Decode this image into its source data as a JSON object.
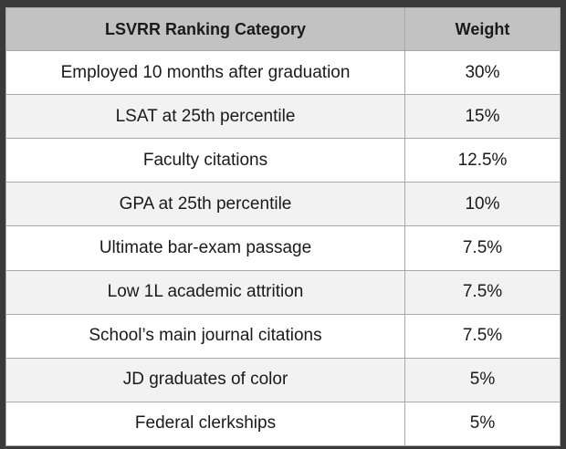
{
  "table": {
    "headers": [
      "LSVRR Ranking Category",
      "Weight"
    ],
    "rows": [
      {
        "category": "Employed 10 months after graduation",
        "weight": "30%"
      },
      {
        "category": "LSAT at 25th percentile",
        "weight": "15%"
      },
      {
        "category": "Faculty citations",
        "weight": "12.5%"
      },
      {
        "category": "GPA at 25th percentile",
        "weight": "10%"
      },
      {
        "category": "Ultimate bar-exam passage",
        "weight": "7.5%"
      },
      {
        "category": "Low 1L academic attrition",
        "weight": "7.5%"
      },
      {
        "category": "School’s main journal citations",
        "weight": "7.5%"
      },
      {
        "category": "JD graduates of color",
        "weight": "5%"
      },
      {
        "category": "Federal clerkships",
        "weight": "5%"
      }
    ]
  },
  "colors": {
    "header_bg": "#c2c2c2",
    "alt_row_bg": "#f2f2f2",
    "background": "#3a3a3a"
  }
}
